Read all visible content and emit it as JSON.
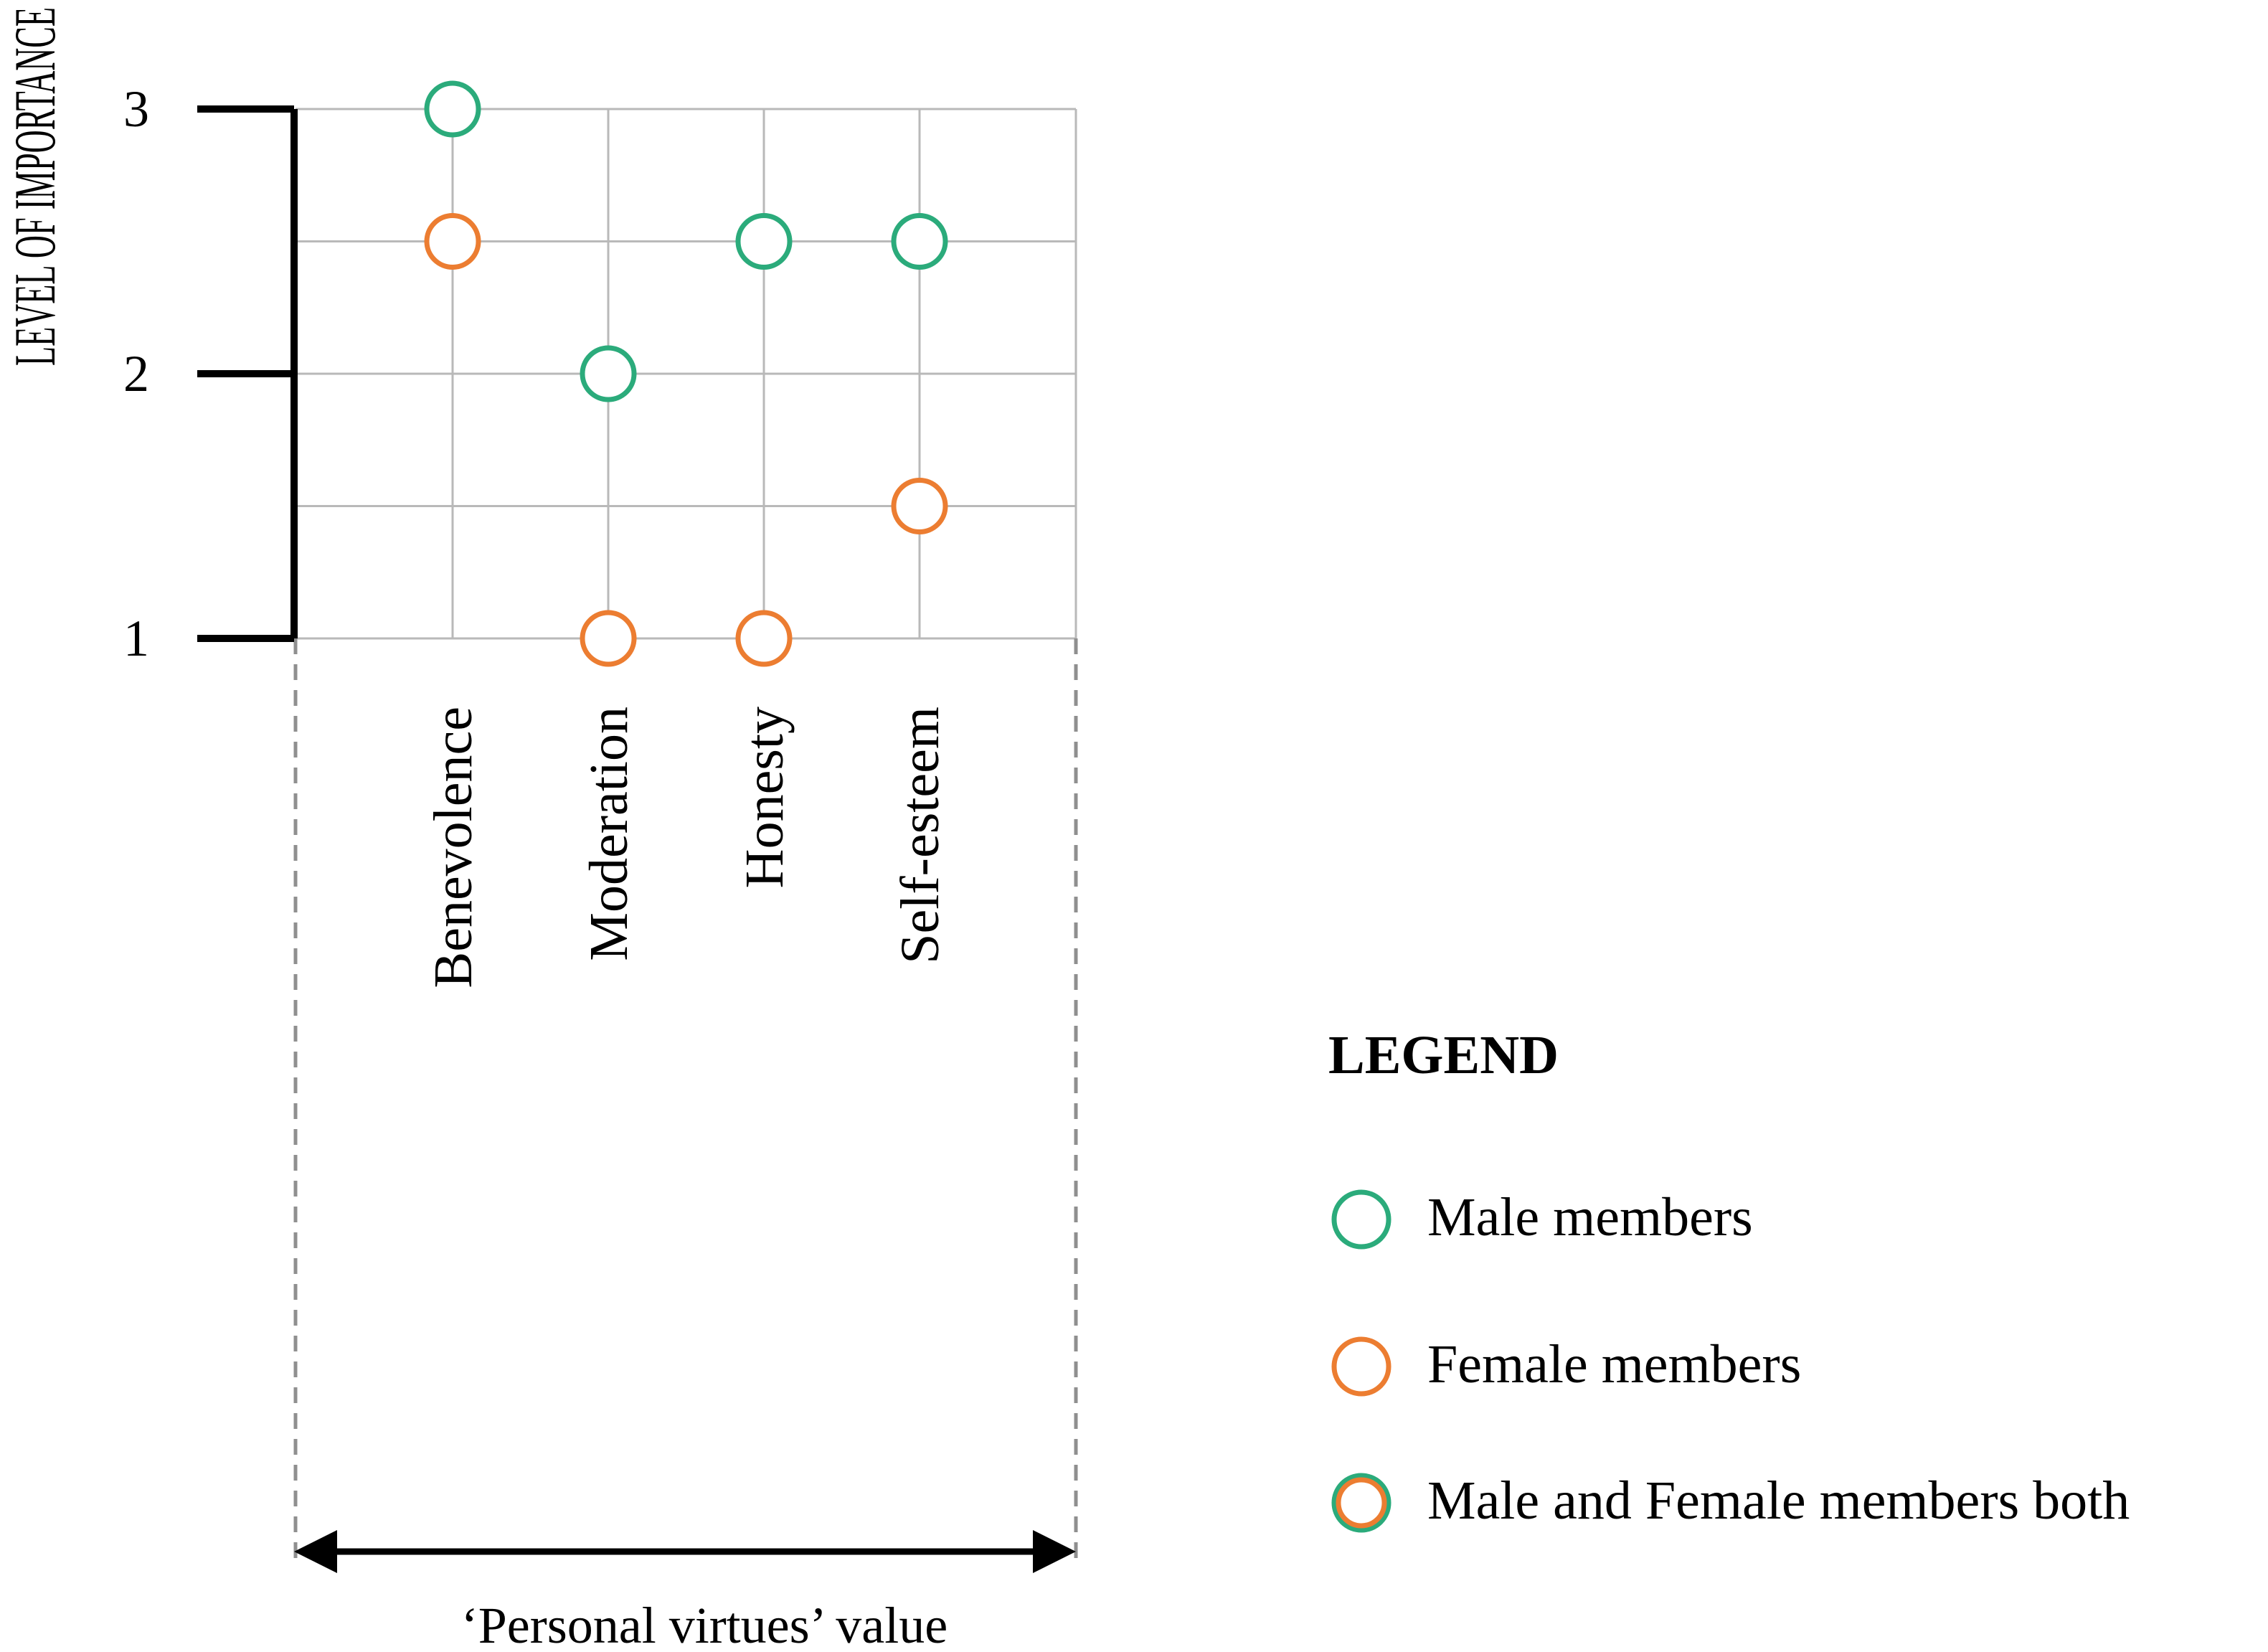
{
  "chart_data": {
    "type": "scatter",
    "ylabel": "LEVEL OF IMPORTANCE",
    "xlabel": "‘Personal virtues’ value",
    "categories": [
      "Benevolence",
      "Moderation",
      "Honesty",
      "Self-esteem"
    ],
    "yticks": [
      "1",
      "2",
      "3"
    ],
    "ylim": [
      1,
      3
    ],
    "grid": true,
    "legend_title": "LEGEND",
    "legend_position": "bottom-right",
    "series": [
      {
        "name": "Male members",
        "color": "#2bab7b",
        "values": [
          3,
          2,
          2.5,
          2.5
        ]
      },
      {
        "name": "Female members",
        "color": "#ec7d31",
        "values": [
          2.5,
          1,
          1,
          1.5
        ]
      }
    ],
    "legend": [
      {
        "label": "Male members",
        "stroke": "#2bab7b",
        "inner": ""
      },
      {
        "label": "Female members",
        "stroke": "#ec7d31",
        "inner": ""
      },
      {
        "label": "Male and Female members both",
        "stroke": "#2bab7b",
        "inner": "#ec7d31"
      }
    ]
  }
}
